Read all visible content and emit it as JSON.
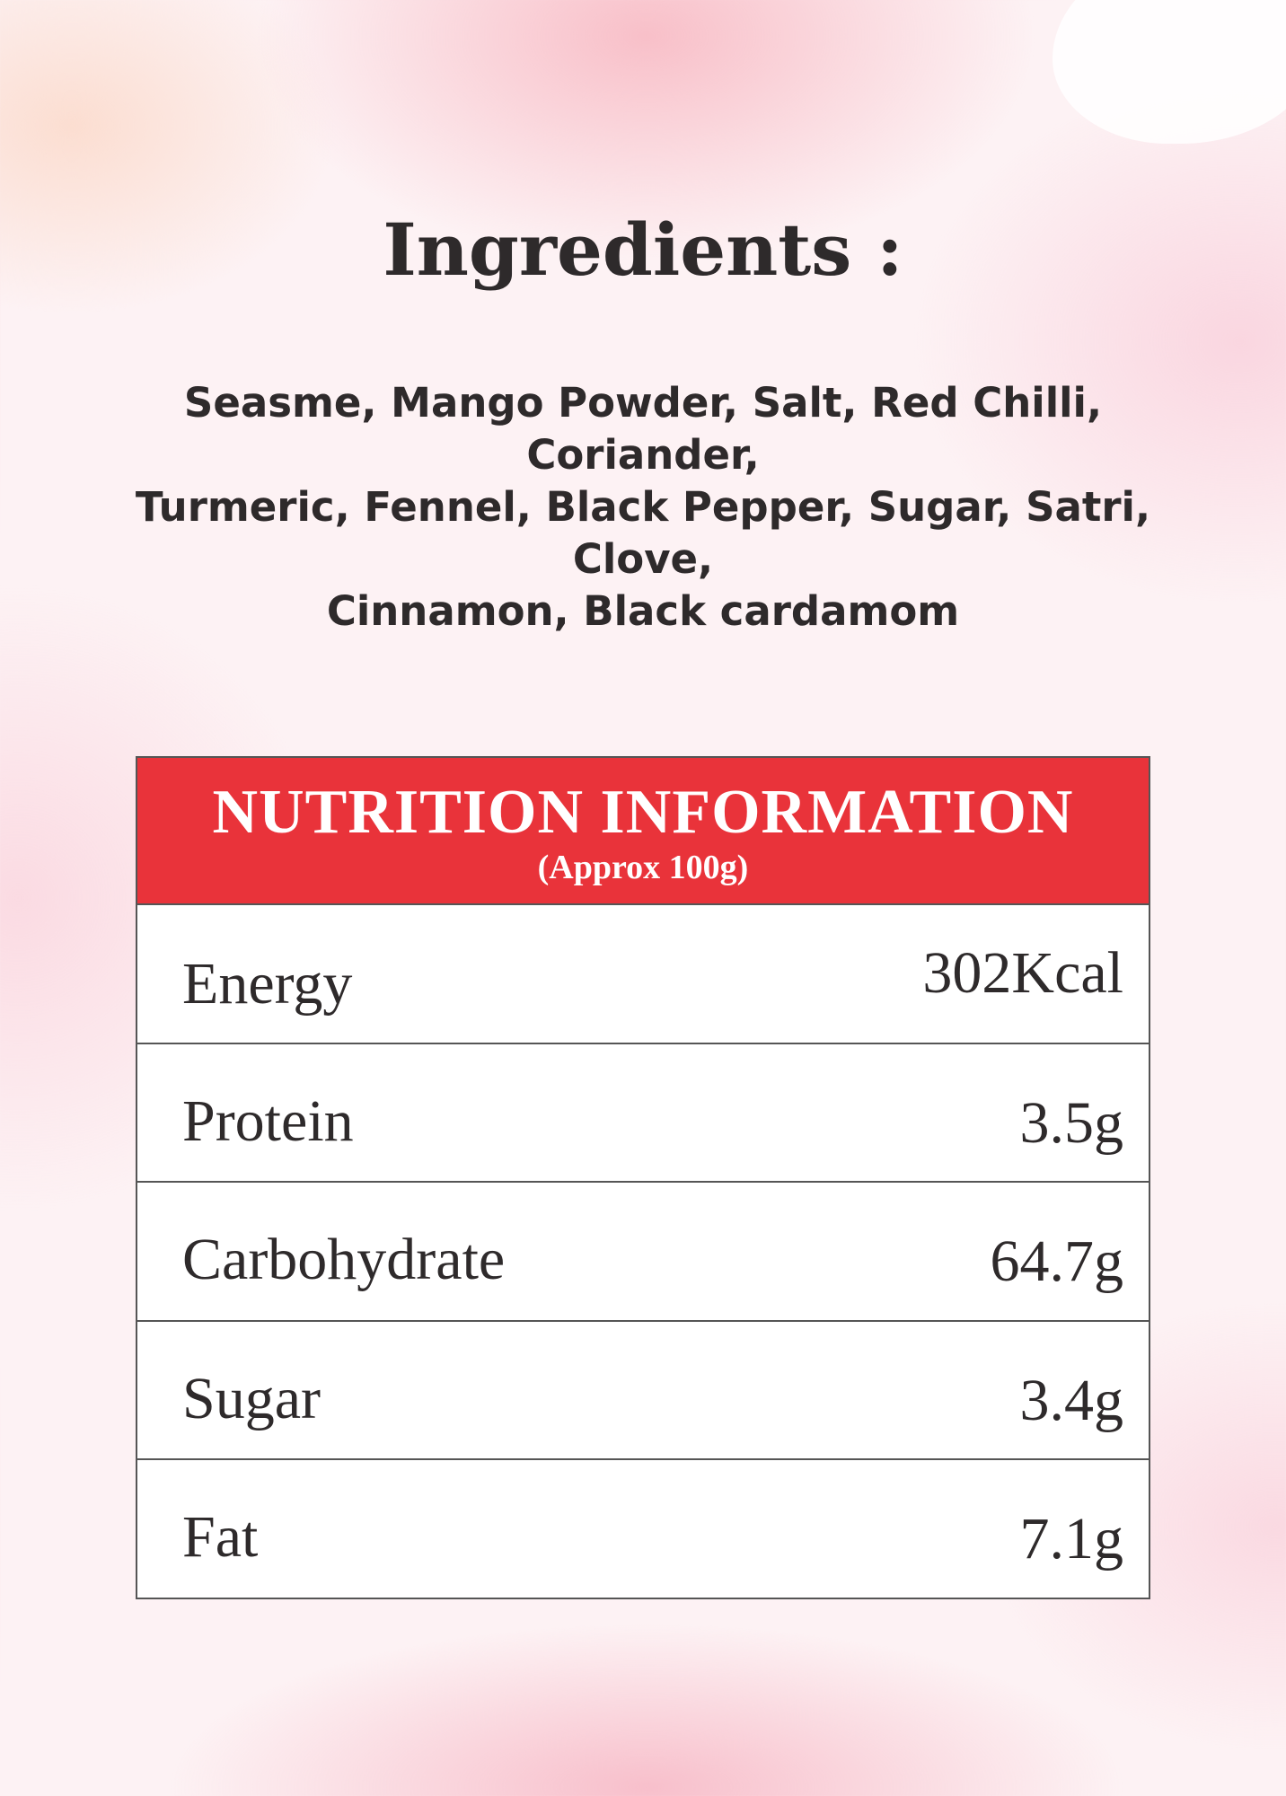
{
  "ingredients": {
    "title": "Ingredients :",
    "lines": [
      "Seasme, Mango Powder, Salt, Red Chilli, Coriander,",
      "Turmeric, Fennel, Black Pepper, Sugar, Satri, Clove,",
      "Cinnamon, Black cardamom"
    ]
  },
  "nutrition": {
    "title": "NUTRITION INFORMATION",
    "subtitle": "(Approx 100g)",
    "rows": [
      {
        "label": "Energy",
        "value": "302Kcal"
      },
      {
        "label": "Protein",
        "value": "3.5g"
      },
      {
        "label": "Carbohydrate",
        "value": "64.7g"
      },
      {
        "label": "Sugar",
        "value": "3.4g"
      },
      {
        "label": "Fat",
        "value": "7.1g"
      }
    ]
  },
  "colors": {
    "header_red": "#e9333a",
    "text_dark": "#2e2a2b",
    "background_pink": "#fdf2f4"
  }
}
